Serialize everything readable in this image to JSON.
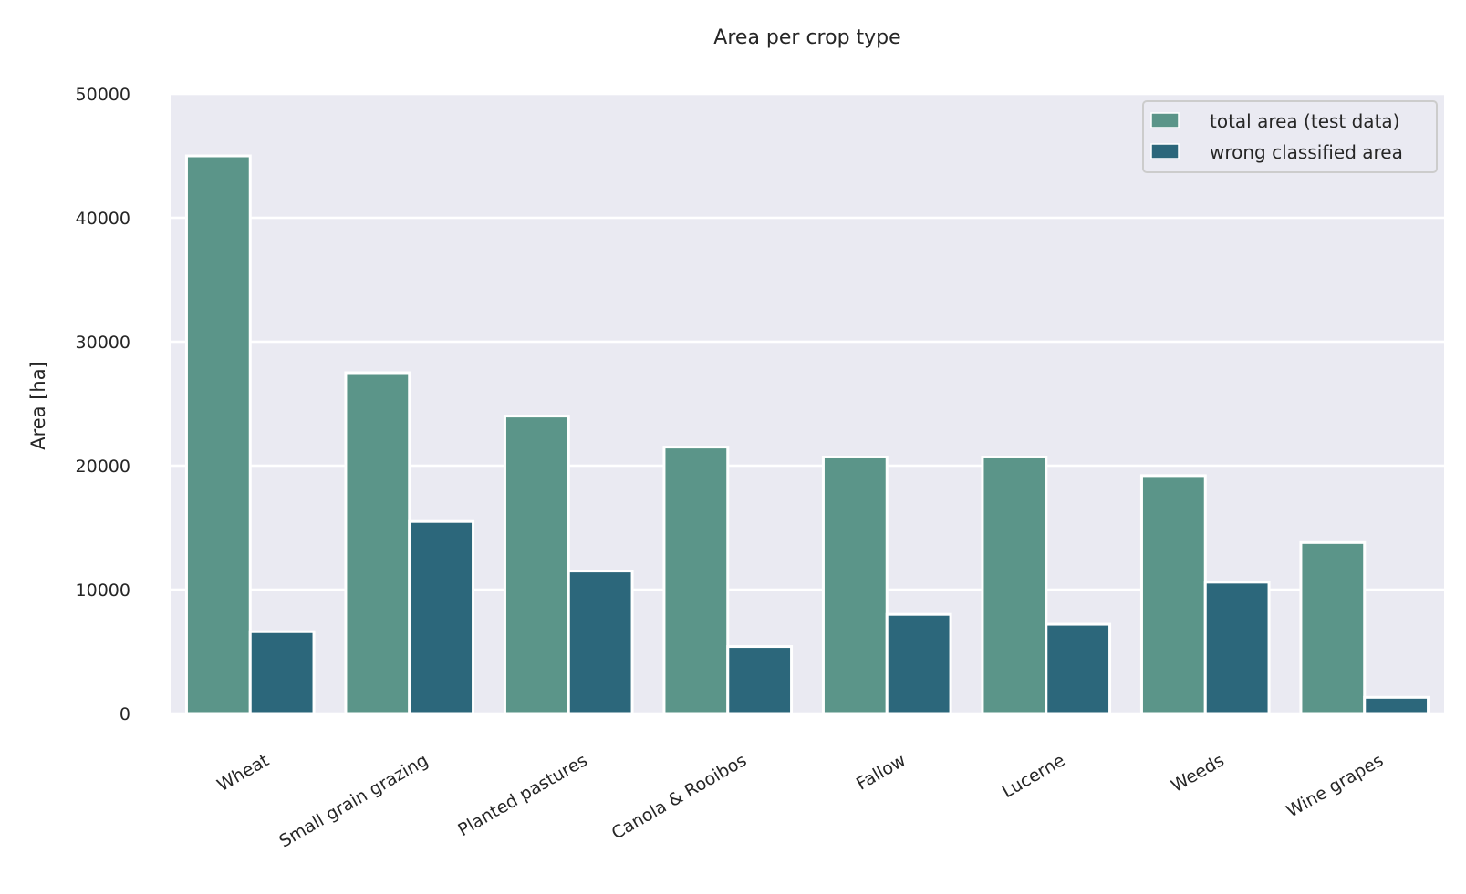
{
  "chart_data": {
    "type": "bar",
    "title": "Area per crop type",
    "xlabel": "",
    "ylabel": "Area [ha]",
    "ylim": [
      0,
      50000
    ],
    "yticks": [
      0,
      10000,
      20000,
      30000,
      40000,
      50000
    ],
    "grid": true,
    "legend_position": "top-right",
    "categories": [
      "Wheat",
      "Small grain grazing",
      "Planted pastures",
      "Canola & Rooibos",
      "Fallow",
      "Lucerne",
      "Weeds",
      "Wine grapes"
    ],
    "series": [
      {
        "name": "total area (test data)",
        "color": "#5b9589",
        "values": [
          45000,
          27500,
          24000,
          21500,
          20700,
          20700,
          19200,
          13800
        ]
      },
      {
        "name": "wrong classified area",
        "color": "#2c677b",
        "values": [
          6600,
          15500,
          11500,
          5400,
          8000,
          7200,
          10600,
          1300
        ]
      }
    ]
  }
}
